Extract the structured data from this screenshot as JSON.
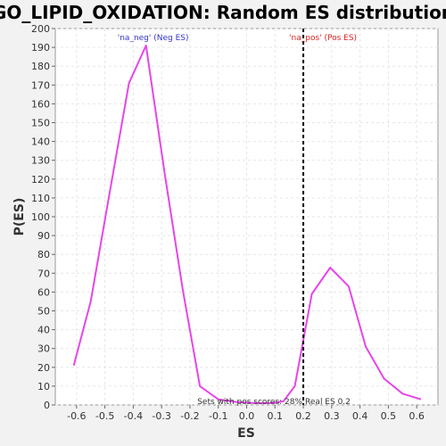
{
  "chart_data": {
    "type": "line",
    "title": "GO_LIPID_OXIDATION: Random ES distribution",
    "xlabel": "ES",
    "ylabel": "P(ES)",
    "xlim": [
      -0.675,
      0.675
    ],
    "ylim": [
      0,
      200
    ],
    "x_ticks": [
      -0.6,
      -0.5,
      -0.4,
      -0.3,
      -0.2,
      -0.1,
      0.0,
      0.1,
      0.2,
      0.3,
      0.4,
      0.5,
      0.6
    ],
    "x_tick_labels": [
      "-0.6",
      "-0.5",
      "-0.4",
      "-0.3",
      "-0.2",
      "-0.1",
      "0.0",
      "0.1",
      "0.2",
      "0.3",
      "0.4",
      "0.5",
      "0.6"
    ],
    "y_ticks": [
      0,
      10,
      20,
      30,
      40,
      50,
      60,
      70,
      80,
      90,
      100,
      110,
      120,
      130,
      140,
      150,
      160,
      170,
      180,
      190,
      200
    ],
    "y_tick_labels": [
      "0",
      "10",
      "20",
      "30",
      "40",
      "50",
      "60",
      "70",
      "80",
      "90",
      "100",
      "110",
      "120",
      "130",
      "140",
      "150",
      "160",
      "170",
      "180",
      "190",
      "200"
    ],
    "grid": true,
    "series": [
      {
        "color": "#e845e8",
        "x": [
          -0.61,
          -0.55,
          -0.49,
          -0.415,
          -0.355,
          -0.29,
          -0.225,
          -0.165,
          -0.1,
          -0.035,
          0.03,
          0.09,
          0.13,
          0.17,
          0.23,
          0.295,
          0.36,
          0.42,
          0.485,
          0.55,
          0.615
        ],
        "y": [
          21,
          55,
          107,
          171,
          191,
          124,
          61,
          10,
          3,
          1.5,
          1,
          1,
          2,
          10,
          59,
          73,
          63,
          31,
          14,
          6,
          3
        ]
      }
    ],
    "vline": {
      "x": 0.2,
      "color": "#000000",
      "style": "dashed"
    },
    "annotations": [
      {
        "text": "'na_neg' (Neg ES)",
        "color": "#3333cc"
      },
      {
        "text": "'na_pos' (Pos ES)",
        "color": "#dd2222"
      },
      {
        "text": "Sets with pos scores: 28%",
        "color": "#333333"
      },
      {
        "text": "Real ES 0.2",
        "color": "#333333"
      }
    ]
  }
}
